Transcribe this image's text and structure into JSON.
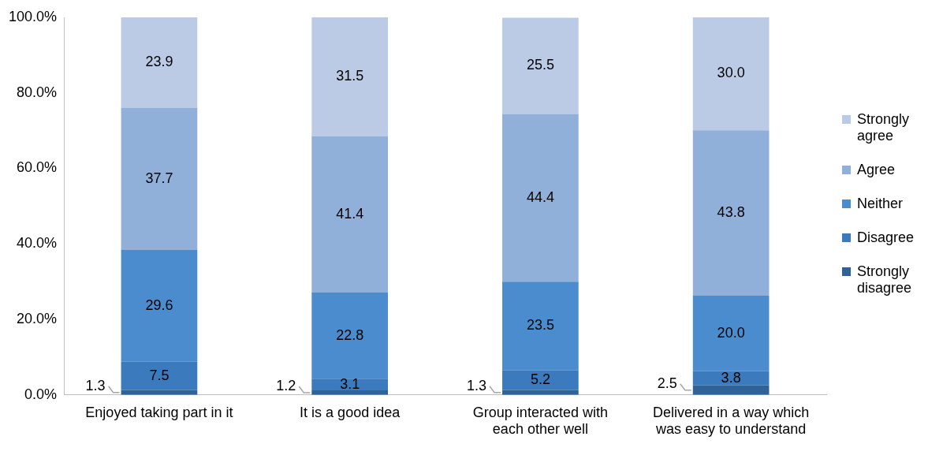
{
  "chart_data": {
    "type": "bar",
    "stacked": true,
    "categories": [
      "Enjoyed taking part in it",
      "It is a good idea",
      "Group interacted with each other well",
      "Delivered in a way which was easy to understand"
    ],
    "series": [
      {
        "name": "Strongly disagree",
        "color": "#2f6398",
        "values": [
          1.3,
          1.2,
          1.3,
          2.5
        ],
        "value_labels": [
          "1.3",
          "1.2",
          "1.3",
          "2.5"
        ]
      },
      {
        "name": "Disagree",
        "color": "#3b7bbd",
        "values": [
          7.5,
          3.1,
          5.2,
          3.8
        ],
        "value_labels": [
          "7.5",
          "3.1",
          "5.2",
          "3.8"
        ]
      },
      {
        "name": "Neither",
        "color": "#4a8cce",
        "values": [
          29.6,
          22.8,
          23.5,
          20.0
        ],
        "value_labels": [
          "29.6",
          "22.8",
          "23.5",
          "20.0"
        ]
      },
      {
        "name": "Agree",
        "color": "#90b0da",
        "values": [
          37.7,
          41.4,
          44.4,
          43.8
        ],
        "value_labels": [
          "37.7",
          "41.4",
          "44.4",
          "43.8"
        ]
      },
      {
        "name": "Strongly agree",
        "color": "#bccbe5",
        "values": [
          23.9,
          31.5,
          25.5,
          30.0
        ],
        "value_labels": [
          "23.9",
          "31.5",
          "25.5",
          "30.0"
        ]
      }
    ],
    "ylim": [
      0,
      100
    ],
    "yticks": [
      {
        "value": 0,
        "label": "0.0%"
      },
      {
        "value": 20,
        "label": "20.0%"
      },
      {
        "value": 40,
        "label": "40.0%"
      },
      {
        "value": 60,
        "label": "60.0%"
      },
      {
        "value": 80,
        "label": "80.0%"
      },
      {
        "value": 100,
        "label": "100.0%"
      }
    ],
    "grid": false,
    "legend": "right"
  }
}
